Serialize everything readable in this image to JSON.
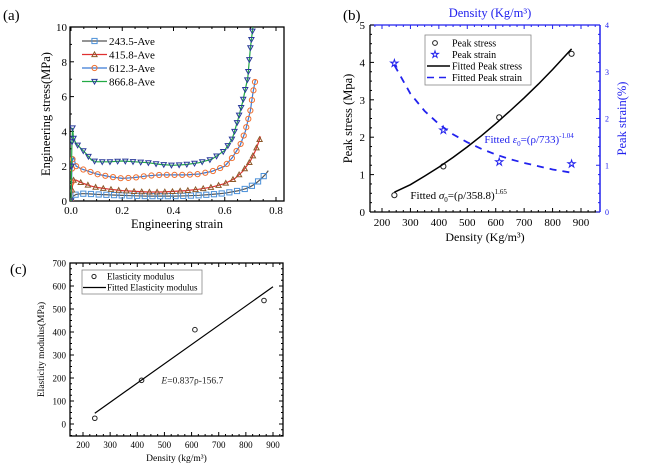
{
  "chart_data": [
    {
      "id": "a",
      "panel_label": "(a)",
      "type": "line",
      "title": "",
      "xlabel": "Engineering strain",
      "ylabel": "Engineering stress(MPa)",
      "xlim": [
        0.0,
        0.85
      ],
      "ylim": [
        0,
        10
      ],
      "xticks": [
        "0.0",
        "0.2",
        "0.4",
        "0.6",
        "0.8"
      ],
      "xtick_values": [
        0.0,
        0.2,
        0.4,
        0.6,
        0.8
      ],
      "yticks": [
        "0",
        "2",
        "4",
        "6",
        "8",
        "10"
      ],
      "ytick_values": [
        0,
        2,
        4,
        6,
        8,
        10
      ],
      "legend_position": "top-left",
      "series": [
        {
          "name": "243.5-Ave",
          "line_color": "#555555",
          "marker_color": "#4a90d9",
          "marker": "square",
          "x": [
            0.0,
            0.005,
            0.01,
            0.02,
            0.04,
            0.06,
            0.08,
            0.1,
            0.15,
            0.2,
            0.25,
            0.3,
            0.35,
            0.4,
            0.45,
            0.5,
            0.55,
            0.6,
            0.65,
            0.68,
            0.7,
            0.72,
            0.74,
            0.76,
            0.77
          ],
          "y": [
            0.0,
            0.2,
            0.3,
            0.38,
            0.42,
            0.42,
            0.4,
            0.38,
            0.35,
            0.32,
            0.3,
            0.28,
            0.28,
            0.28,
            0.3,
            0.33,
            0.38,
            0.45,
            0.58,
            0.7,
            0.82,
            1.0,
            1.25,
            1.55,
            1.75
          ]
        },
        {
          "name": "415.8-Ave",
          "line_color": "#e03030",
          "marker_color": "#8b5a2b",
          "marker": "triangle-up",
          "x": [
            0.0,
            0.005,
            0.01,
            0.02,
            0.04,
            0.06,
            0.08,
            0.1,
            0.15,
            0.2,
            0.25,
            0.3,
            0.35,
            0.4,
            0.45,
            0.5,
            0.55,
            0.6,
            0.64,
            0.67,
            0.7,
            0.72,
            0.73,
            0.74
          ],
          "y": [
            0.0,
            0.8,
            1.2,
            1.2,
            1.05,
            0.95,
            0.85,
            0.78,
            0.68,
            0.6,
            0.55,
            0.52,
            0.52,
            0.55,
            0.6,
            0.68,
            0.8,
            1.0,
            1.3,
            1.7,
            2.3,
            2.9,
            3.3,
            3.7
          ]
        },
        {
          "name": "612.3-Ave",
          "line_color": "#3a7bd5",
          "marker_color": "#f07030",
          "marker": "circle",
          "x": [
            0.0,
            0.003,
            0.006,
            0.01,
            0.02,
            0.04,
            0.06,
            0.08,
            0.1,
            0.15,
            0.2,
            0.25,
            0.3,
            0.35,
            0.4,
            0.45,
            0.5,
            0.55,
            0.6,
            0.63,
            0.66,
            0.68,
            0.7,
            0.71,
            0.72
          ],
          "y": [
            0.0,
            1.6,
            2.4,
            2.5,
            2.0,
            1.85,
            1.75,
            1.65,
            1.55,
            1.4,
            1.3,
            1.35,
            1.45,
            1.5,
            1.5,
            1.5,
            1.55,
            1.7,
            2.0,
            2.5,
            3.2,
            4.0,
            5.2,
            6.2,
            7.0
          ]
        },
        {
          "name": "866.8-Ave",
          "line_color": "#22aa44",
          "marker_color": "#2a3a9a",
          "marker": "triangle-down",
          "x": [
            0.0,
            0.003,
            0.006,
            0.01,
            0.02,
            0.04,
            0.06,
            0.08,
            0.1,
            0.15,
            0.2,
            0.25,
            0.3,
            0.35,
            0.4,
            0.45,
            0.5,
            0.55,
            0.6,
            0.63,
            0.65,
            0.67,
            0.69,
            0.7,
            0.71
          ],
          "y": [
            0.0,
            3.0,
            4.2,
            3.6,
            3.3,
            3.0,
            2.7,
            2.35,
            2.25,
            2.25,
            2.3,
            2.25,
            2.2,
            2.1,
            2.05,
            2.1,
            2.2,
            2.4,
            2.9,
            3.6,
            4.6,
            5.7,
            7.1,
            8.8,
            10.0
          ]
        }
      ]
    },
    {
      "id": "b",
      "panel_label": "(b)",
      "type": "scatter",
      "title": "",
      "top_xlabel": "Density (Kg/m³)",
      "xlabel": "Density (Kg/m³)",
      "ylabel": "Peak stress (Mpa)",
      "y2label": "Peak strain(%)",
      "xlim": [
        150,
        950
      ],
      "ylim": [
        0,
        5
      ],
      "y2lim": [
        0,
        4
      ],
      "xticks": [
        "200",
        "300",
        "400",
        "500",
        "600",
        "700",
        "800",
        "900"
      ],
      "xtick_values": [
        200,
        300,
        400,
        500,
        600,
        700,
        800,
        900
      ],
      "yticks": [
        "0",
        "1",
        "2",
        "3",
        "4",
        "5"
      ],
      "ytick_values": [
        0,
        1,
        2,
        3,
        4,
        5
      ],
      "y2ticks": [
        "0",
        "1",
        "2",
        "3",
        "4"
      ],
      "y2tick_values": [
        0,
        1,
        2,
        3,
        4
      ],
      "legend_position": "top-center",
      "axis_color_right": "#2222ee",
      "series": [
        {
          "name": "Peak stress",
          "kind": "points",
          "marker": "circle",
          "color": "#222222",
          "axis": "left",
          "x": [
            243.5,
            415.8,
            612.3,
            866.8
          ],
          "y": [
            0.45,
            1.22,
            2.53,
            4.23
          ]
        },
        {
          "name": "Peak strain",
          "kind": "points",
          "marker": "star",
          "color": "#2222ee",
          "axis": "right",
          "x": [
            243.5,
            415.8,
            612.3,
            866.8
          ],
          "y": [
            3.18,
            1.75,
            1.07,
            1.03
          ]
        },
        {
          "name": "Fitted Peak stress",
          "kind": "line",
          "style": "solid",
          "color": "#000000",
          "axis": "left",
          "x": [
            243.5,
            300,
            350,
            400,
            450,
            500,
            550,
            600,
            650,
            700,
            750,
            800,
            866.8
          ],
          "y": [
            0.53,
            0.73,
            0.96,
            1.2,
            1.46,
            1.74,
            2.04,
            2.36,
            2.7,
            3.05,
            3.42,
            3.81,
            4.36
          ]
        },
        {
          "name": "Fitted Peak strain",
          "kind": "line",
          "style": "dashed",
          "color": "#2222ee",
          "axis": "right",
          "x": [
            243.5,
            300,
            350,
            400,
            450,
            500,
            550,
            600,
            650,
            700,
            750,
            800,
            866.8
          ],
          "y": [
            3.14,
            2.53,
            2.16,
            1.88,
            1.66,
            1.49,
            1.35,
            1.23,
            1.13,
            1.05,
            0.98,
            0.91,
            0.84
          ]
        }
      ],
      "annotations": [
        {
          "text_prefix": "Fitted  ",
          "sym": "σ",
          "sub": "0",
          "body": "=(ρ/358.8)",
          "sup": "1.65",
          "color": "#000000",
          "x": 300,
          "y": 0.45,
          "axis": "left"
        },
        {
          "text_prefix": "Fitted  ",
          "sym": "ε",
          "sub": "0",
          "body": "=(ρ/733)",
          "sup": "-1.04",
          "color": "#2222ee",
          "x": 560,
          "y": 1.95,
          "axis": "left"
        }
      ]
    },
    {
      "id": "c",
      "panel_label": "(c)",
      "type": "scatter",
      "title": "",
      "xlabel": "Density (kg/m³)",
      "ylabel": "Elasticity modulus(MPa)",
      "xlim": [
        150,
        950
      ],
      "ylim": [
        -50,
        700
      ],
      "xticks": [
        "200",
        "300",
        "400",
        "500",
        "600",
        "700",
        "800",
        "900"
      ],
      "xtick_values": [
        200,
        300,
        400,
        500,
        600,
        700,
        800,
        900
      ],
      "yticks": [
        "0",
        "100",
        "200",
        "300",
        "400",
        "500",
        "600",
        "700"
      ],
      "ytick_values": [
        0,
        100,
        200,
        300,
        400,
        500,
        600,
        700
      ],
      "legend_position": "top-left",
      "series": [
        {
          "name": "Elasticity modulus",
          "kind": "points",
          "marker": "circle",
          "color": "#222222",
          "x": [
            243.5,
            415.8,
            612.3,
            866.8
          ],
          "y": [
            25,
            190,
            410,
            537
          ]
        },
        {
          "name": "Fitted Elasticity modulus",
          "kind": "line",
          "style": "solid",
          "color": "#000000",
          "x": [
            243.5,
            900
          ],
          "y": [
            47.1,
            596.6
          ]
        }
      ],
      "annotations": [
        {
          "text_italic": "E",
          "body": "=0.837ρ-156.7",
          "color": "#222222",
          "x": 500,
          "y": 190
        }
      ]
    }
  ]
}
